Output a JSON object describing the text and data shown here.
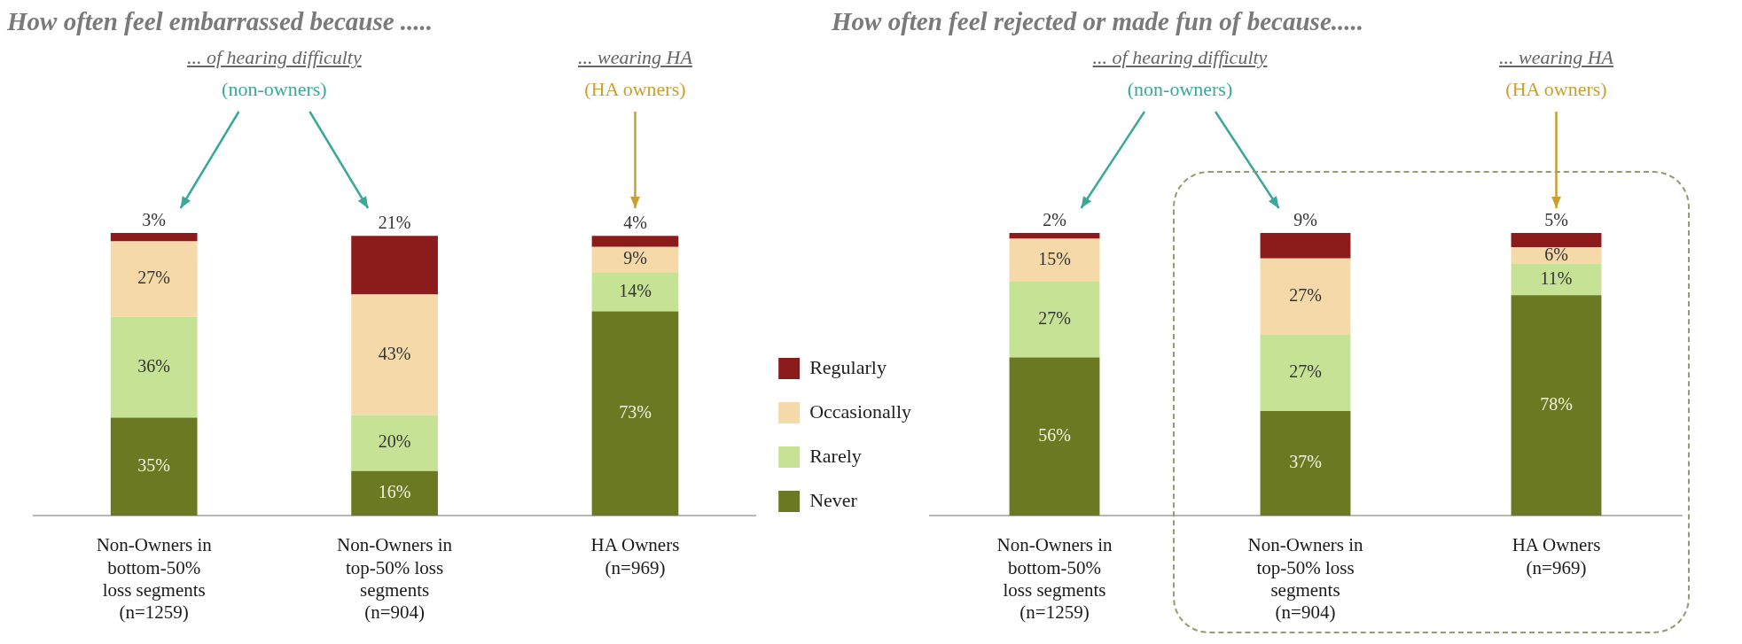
{
  "chart_data": [
    {
      "type": "bar",
      "title": "How often feel embarrassed because .....",
      "stacked": true,
      "legend": "right",
      "categories": [
        "Non-Owners in\nbottom-50%\nloss segments\n(n=1259)",
        "Non-Owners in\ntop-50% loss\nsegments\n(n=904)",
        "HA Owners\n(n=969)"
      ],
      "annotations": [
        "... of hearing difficulty",
        "(non-owners)",
        "... wearing HA",
        "(HA owners)"
      ],
      "series": [
        {
          "name": "Never",
          "color": "#6b7a22",
          "values": [
            35,
            16,
            73
          ],
          "value_labels": [
            "35%",
            "16%",
            "73%"
          ]
        },
        {
          "name": "Rarely",
          "color": "#c6e294",
          "values": [
            36,
            20,
            14
          ],
          "value_labels": [
            "36%",
            "20%",
            "14%"
          ]
        },
        {
          "name": "Occasionally",
          "color": "#f6d9a8",
          "values": [
            27,
            43,
            9
          ],
          "value_labels": [
            "27%",
            "43%",
            "9%"
          ]
        },
        {
          "name": "Regularly",
          "color": "#8c1c1c",
          "values": [
            3,
            21,
            4
          ],
          "value_labels": [
            "3%",
            "21%",
            "4%"
          ]
        }
      ]
    },
    {
      "type": "bar",
      "title": "How often feel rejected or made fun of because.....",
      "stacked": true,
      "categories": [
        "Non-Owners in\nbottom-50%\nloss segments\n(n=1259)",
        "Non-Owners in\ntop-50% loss\nsegments\n(n=904)",
        "HA Owners\n(n=969)"
      ],
      "annotations": [
        "... of hearing difficulty",
        "(non-owners)",
        "... wearing HA",
        "(HA owners)"
      ],
      "series": [
        {
          "color": "#6b7a22",
          "values": [
            56,
            37,
            78
          ],
          "value_labels": [
            "56%",
            "37%",
            "78%"
          ]
        },
        {
          "color": "#c6e294",
          "values": [
            27,
            27,
            11
          ],
          "value_labels": [
            "27%",
            "27%",
            "11%"
          ]
        },
        {
          "color": "#f6d9a8",
          "values": [
            15,
            27,
            6
          ],
          "value_labels": [
            "15%",
            "27%",
            "6%"
          ]
        },
        {
          "color": "#8c1c1c",
          "values": [
            2,
            9,
            5
          ],
          "value_labels": [
            "2%",
            "9%",
            "5%"
          ]
        }
      ]
    }
  ]
}
